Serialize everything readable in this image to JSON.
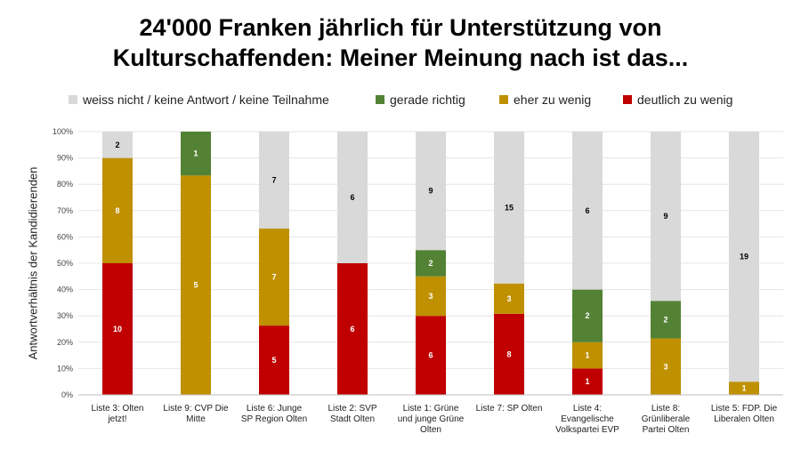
{
  "title_line1": "24'000 Franken jährlich für Unterstützung von",
  "title_line2": "Kulturschaffenden: Meiner Meinung nach ist das...",
  "chart_data": {
    "type": "bar",
    "stacked": true,
    "normalized": true,
    "title": "24'000 Franken jährlich für Unterstützung von Kulturschaffenden: Meiner Meinung nach ist das...",
    "ylabel": "Antwortverhältnis der Kandidierenden",
    "xlabel": "",
    "ylim": [
      0,
      100
    ],
    "yticks": [
      "0%",
      "10%",
      "20%",
      "30%",
      "40%",
      "50%",
      "60%",
      "70%",
      "80%",
      "90%",
      "100%"
    ],
    "legend_position": "top",
    "legend": [
      {
        "name": "weiss nicht / keine Antwort / keine Teilnahme",
        "color": "#d9d9d9"
      },
      {
        "name": "gerade richtig",
        "color": "#548235"
      },
      {
        "name": "eher zu wenig",
        "color": "#bf9000"
      },
      {
        "name": "deutlich zu wenig",
        "color": "#c00000"
      }
    ],
    "categories": [
      [
        "Liste 3: Olten",
        "jetzt!"
      ],
      [
        "Liste 9: CVP Die",
        "Mitte"
      ],
      [
        "Liste 6: Junge",
        "SP Region Olten"
      ],
      [
        "Liste 2: SVP",
        "Stadt Olten"
      ],
      [
        "Liste 1: Grüne",
        "und junge Grüne",
        "Olten"
      ],
      [
        "Liste 7: SP Olten"
      ],
      [
        "Liste 4:",
        "Evangelische",
        "Volkspartei EVP"
      ],
      [
        "Liste 8:",
        "Grünliberale",
        "Partei Olten"
      ],
      [
        "Liste 5: FDP. Die",
        "Liberalen Olten"
      ]
    ],
    "series": [
      {
        "name": "deutlich zu wenig",
        "color": "#c00000",
        "label_color": "#ffffff",
        "values": [
          10,
          0,
          5,
          6,
          6,
          8,
          1,
          0,
          0
        ]
      },
      {
        "name": "eher zu wenig",
        "color": "#bf9000",
        "label_color": "#ffffff",
        "values": [
          8,
          5,
          7,
          0,
          3,
          3,
          1,
          3,
          1
        ]
      },
      {
        "name": "gerade richtig",
        "color": "#548235",
        "label_color": "#ffffff",
        "values": [
          0,
          1,
          0,
          0,
          2,
          0,
          2,
          2,
          0
        ]
      },
      {
        "name": "weiss nicht / keine Antwort / keine Teilnahme",
        "color": "#d9d9d9",
        "label_color": "#000000",
        "values": [
          2,
          0,
          7,
          6,
          9,
          15,
          6,
          9,
          19
        ]
      }
    ]
  }
}
